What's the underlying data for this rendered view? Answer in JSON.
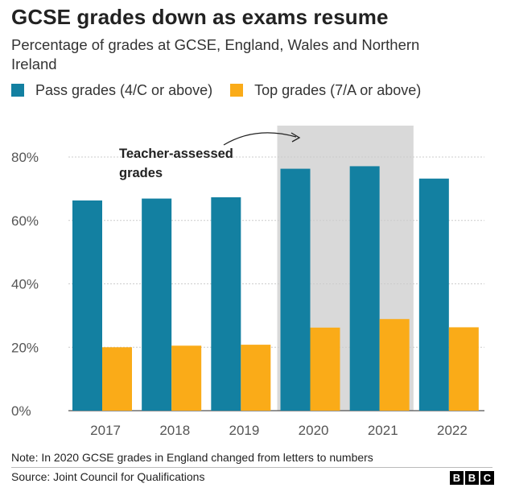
{
  "title": "GCSE grades down as exams resume",
  "subtitle": "Percentage of grades at GCSE, England, Wales and Northern Ireland",
  "legend": [
    {
      "label": "Pass grades (4/C or above)",
      "color": "#1380A1"
    },
    {
      "label": "Top grades (7/A or above)",
      "color": "#FAAB18"
    }
  ],
  "note": "Note: In 2020 GCSE grades in England changed from letters to numbers",
  "source": "Source: Joint Council for Qualifications",
  "logo": [
    "B",
    "B",
    "C"
  ],
  "chart_data": {
    "type": "bar",
    "categories": [
      "2017",
      "2018",
      "2019",
      "2020",
      "2021",
      "2022"
    ],
    "series": [
      {
        "name": "Pass grades (4/C or above)",
        "color": "#1380A1",
        "values": [
          66.3,
          66.9,
          67.3,
          76.3,
          77.1,
          73.2
        ]
      },
      {
        "name": "Top grades (7/A or above)",
        "color": "#FAAB18",
        "values": [
          20.0,
          20.5,
          20.8,
          26.2,
          28.9,
          26.3
        ]
      }
    ],
    "ylim": [
      0,
      80
    ],
    "yticks": [
      "0%",
      "20%",
      "40%",
      "60%",
      "80%"
    ],
    "ytick_values": [
      0,
      20,
      40,
      60,
      80
    ],
    "grid": true,
    "highlight": {
      "from": "2020",
      "to": "2021",
      "color": "#D9D9D9"
    },
    "annotation": {
      "lines": [
        "Teacher-assessed",
        "grades"
      ]
    }
  }
}
